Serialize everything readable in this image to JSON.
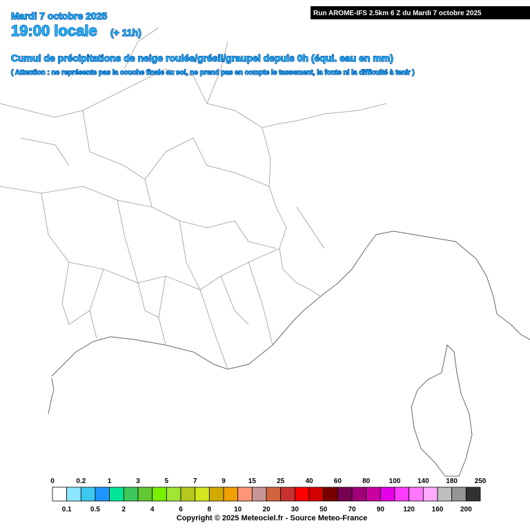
{
  "header": {
    "date": "Mardi 7 octobre 2025",
    "time": "19:00 locale",
    "offset": "(+ 11h)",
    "run_info": "Run AROME-IFS 2.5km 6 Z du Mardi 7 octobre 2025",
    "title": "Cumul de précipitations de neige roulée/grésil/graupel depuis 0h (équi. eau en mm)",
    "subtitle": "( Attention : ne représente pas la couche finale au sol, ne prend pas en compte le tassement, la fonte ni la difficulté à tenir )"
  },
  "legend": {
    "colors": [
      "#ffffff",
      "#8ce6ff",
      "#3cc8f0",
      "#1e96ff",
      "#00e696",
      "#3cc85a",
      "#64c832",
      "#78f000",
      "#a0e632",
      "#b4c81e",
      "#d2e61e",
      "#d2aa00",
      "#f0a000",
      "#ff9678",
      "#c89696",
      "#d2643c",
      "#c83232",
      "#ff0000",
      "#d20000",
      "#780000",
      "#780050",
      "#a00078",
      "#c800a0",
      "#e600e6",
      "#ff3cff",
      "#ff78ff",
      "#ffaaff",
      "#bebebe",
      "#969696",
      "#323232"
    ],
    "labels": [
      "0",
      "0.1",
      "0.2",
      "0.5",
      "1",
      "2",
      "3",
      "4",
      "5",
      "6",
      "7",
      "8",
      "9",
      "10",
      "15",
      "20",
      "25",
      "30",
      "40",
      "50",
      "60",
      "70",
      "80",
      "90",
      "100",
      "120",
      "140",
      "160",
      "180",
      "200",
      "250"
    ]
  },
  "copyright": "Copyright © 2025 Meteociel.fr - Source Meteo-France"
}
